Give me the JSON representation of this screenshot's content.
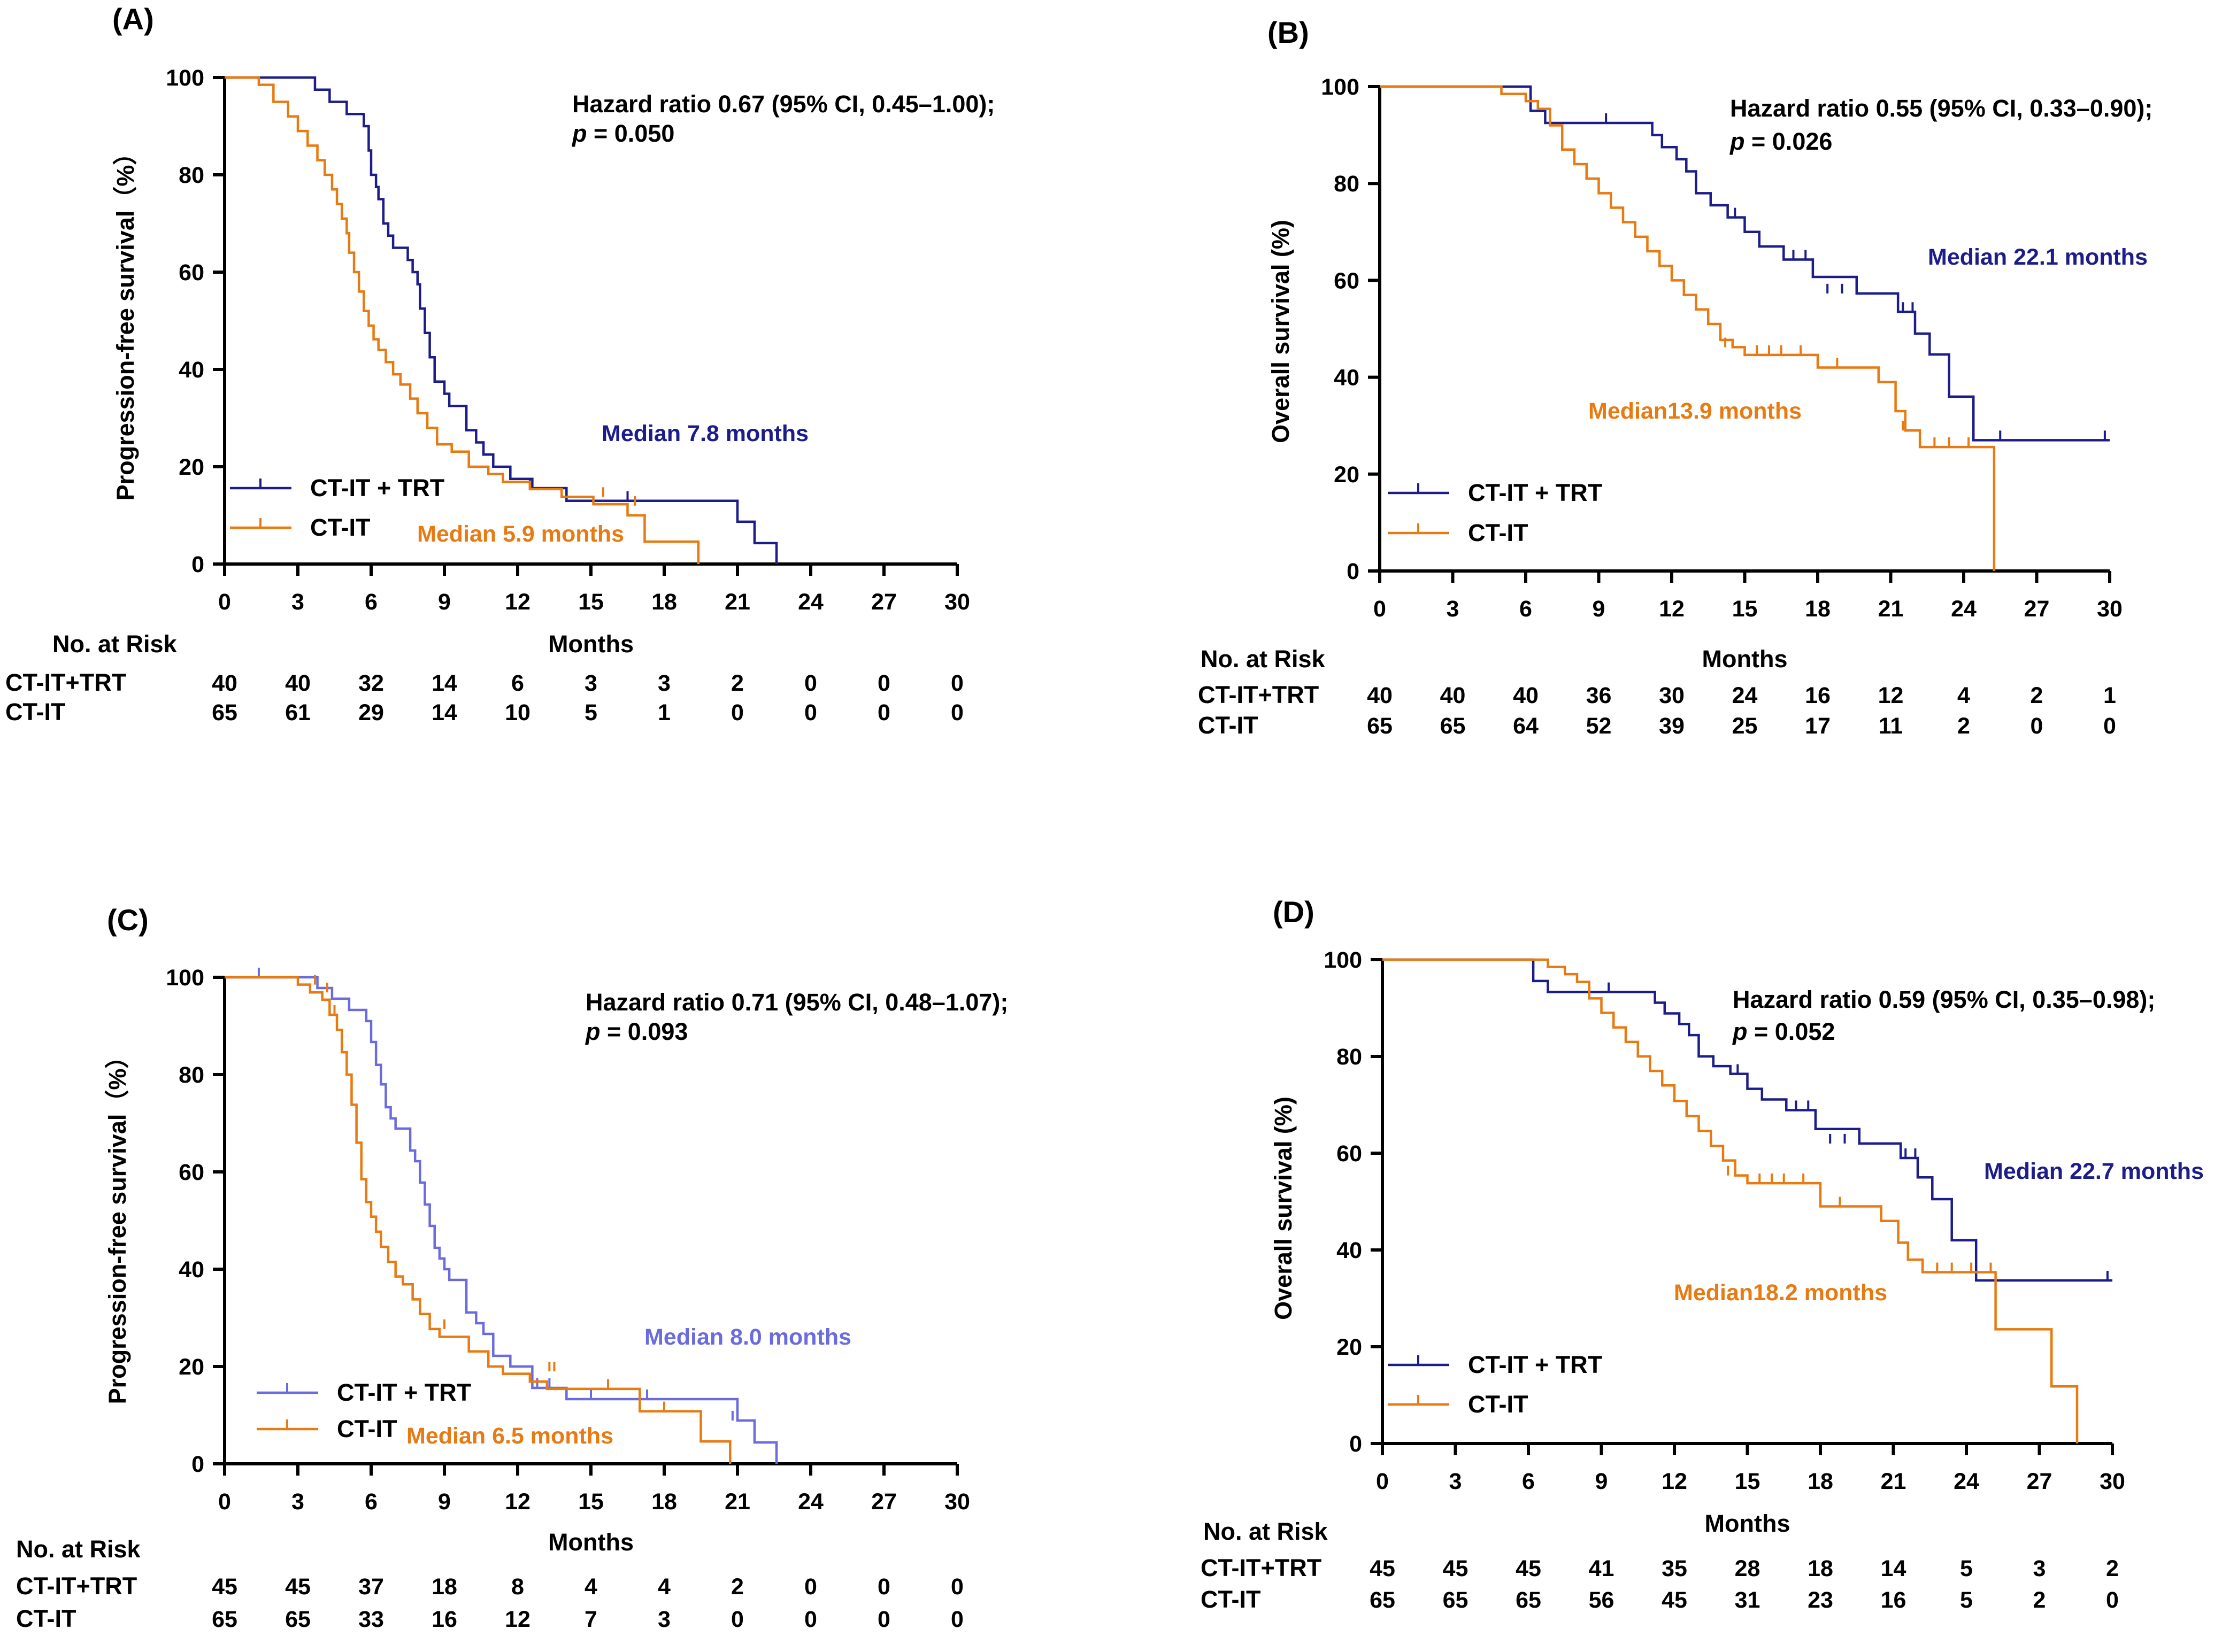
{
  "colors": {
    "blue_dark": "#1c1c8a",
    "blue_light": "#6b6be0",
    "orange": "#e87a12",
    "axis": "#000000"
  },
  "chart_data": [
    {
      "label": "(A)",
      "type": "line",
      "subtype": "kaplan-meier",
      "ylabel": "Progression-free survival（%）",
      "xlabel": "Months",
      "xlim": [
        0,
        30
      ],
      "ylim": [
        0,
        100
      ],
      "x_ticks": [
        "0",
        "3",
        "6",
        "9",
        "12",
        "15",
        "18",
        "21",
        "24",
        "27",
        "30"
      ],
      "y_ticks": [
        "0",
        "20",
        "40",
        "60",
        "80",
        "100"
      ],
      "annotation": {
        "line1": "Hazard ratio 0.67 (95% CI, 0.45–1.00);",
        "line2_p": "p",
        "line2_rest": " = 0.050"
      },
      "median_labels": [
        {
          "text": "Median 7.8 months",
          "series": 0
        },
        {
          "text": "Median 5.9 months",
          "series": 1
        }
      ],
      "series": [
        {
          "name": "CT-IT + TRT",
          "color": "#1c1c8a",
          "x": [
            0,
            3.7,
            4.3,
            5,
            5.7,
            5.9,
            6,
            6.2,
            6.3,
            6.5,
            6.7,
            6.9,
            7.5,
            7.7,
            7.9,
            8,
            8.2,
            8.4,
            8.6,
            9,
            9.2,
            9.9,
            10.3,
            10.6,
            11,
            11.7,
            12.6,
            14,
            16,
            21,
            21.7,
            22.6
          ],
          "y": [
            100,
            97.5,
            95,
            92.5,
            90,
            85,
            80,
            77.5,
            75,
            70,
            67.5,
            65,
            62.5,
            60,
            57.5,
            52.5,
            47.5,
            42.5,
            37.5,
            35,
            32.5,
            27.5,
            25,
            22.5,
            20,
            17.5,
            15.6,
            13,
            13,
            8.7,
            4.3,
            0
          ],
          "censor": [
            [
              12.5,
              15.6
            ],
            [
              16.5,
              13
            ]
          ]
        },
        {
          "name": "CT-IT",
          "color": "#e87a12",
          "x": [
            0,
            1.4,
            2,
            2.6,
            3,
            3.4,
            3.8,
            4.1,
            4.4,
            4.6,
            4.8,
            5,
            5.1,
            5.3,
            5.5,
            5.7,
            5.9,
            6.1,
            6.3,
            6.6,
            6.9,
            7.2,
            7.6,
            7.9,
            8.3,
            8.7,
            9.3,
            10,
            10.8,
            11.4,
            12.5,
            13.8,
            15.1,
            16.5,
            17.2,
            19.4
          ],
          "y": [
            100,
            98.5,
            95,
            92,
            89,
            86,
            83,
            80,
            77,
            74,
            71,
            68,
            64,
            60,
            56,
            52,
            49,
            46.2,
            44,
            41.5,
            39,
            36.9,
            34,
            31,
            28,
            24.6,
            23.1,
            20,
            18.5,
            16.9,
            15.4,
            13.8,
            12.3,
            10,
            4.6,
            0
          ],
          "censor": [
            [
              15.5,
              13.8
            ],
            [
              16.8,
              12
            ]
          ]
        }
      ],
      "at_risk": {
        "header": "No. at Risk",
        "rows": [
          {
            "label": "CT-IT+TRT",
            "values": [
              "40",
              "40",
              "32",
              "14",
              "6",
              "3",
              "3",
              "2",
              "0",
              "0",
              "0"
            ]
          },
          {
            "label": "CT-IT",
            "values": [
              "65",
              "61",
              "29",
              "14",
              "10",
              "5",
              "1",
              "0",
              "0",
              "0",
              "0"
            ]
          }
        ]
      }
    },
    {
      "label": "(B)",
      "type": "line",
      "subtype": "kaplan-meier",
      "ylabel": "Overall survival (%)",
      "xlabel": "Months",
      "xlim": [
        0,
        30
      ],
      "ylim": [
        0,
        100
      ],
      "x_ticks": [
        "0",
        "3",
        "6",
        "9",
        "12",
        "15",
        "18",
        "21",
        "24",
        "27",
        "30"
      ],
      "y_ticks": [
        "0",
        "20",
        "40",
        "60",
        "80",
        "100"
      ],
      "annotation": {
        "line1": "Hazard ratio 0.55 (95% CI, 0.33–0.90);",
        "line2_p": "p",
        "line2_rest": " = 0.026"
      },
      "median_labels": [
        {
          "text": "Median 22.1 months",
          "series": 0
        },
        {
          "text": "Median13.9 months",
          "series": 1
        }
      ],
      "series": [
        {
          "name": "CT-IT + TRT",
          "color": "#1c1c8a",
          "x": [
            0,
            6.2,
            6.8,
            7.5,
            11.2,
            11.6,
            12.2,
            12.6,
            13,
            13.6,
            14.3,
            15,
            15.6,
            16.6,
            17.8,
            19.6,
            21.3,
            22,
            22.6,
            23.4,
            24.4,
            30
          ],
          "y": [
            100,
            95,
            92.5,
            92.5,
            90,
            87.5,
            85,
            82.5,
            78,
            75.5,
            73,
            70,
            67,
            64.3,
            60.7,
            57.3,
            53.5,
            49,
            44.7,
            36,
            27,
            27
          ],
          "censor": [
            [
              9.3,
              92.5
            ],
            [
              14.6,
              73
            ],
            [
              17,
              64.3
            ],
            [
              17.5,
              64.3
            ],
            [
              18.4,
              57.3
            ],
            [
              19,
              57.3
            ],
            [
              21.5,
              53.5
            ],
            [
              21.9,
              53.5
            ],
            [
              25.5,
              27
            ],
            [
              29.8,
              27
            ]
          ]
        },
        {
          "name": "CT-IT",
          "color": "#e87a12",
          "x": [
            0,
            5,
            6,
            6.5,
            7,
            7.5,
            8,
            8.5,
            9,
            9.5,
            10,
            10.5,
            11,
            11.5,
            12,
            12.5,
            13,
            13.5,
            14,
            14.5,
            15,
            16,
            18,
            20.5,
            21.2,
            21.6,
            22.2,
            25.2,
            25.25
          ],
          "y": [
            100,
            98.5,
            97,
            95.4,
            92,
            87,
            84,
            81,
            78,
            75,
            72,
            69,
            66,
            63,
            60,
            57,
            54,
            51,
            47.7,
            46.2,
            44.6,
            44.6,
            42,
            39,
            33,
            29,
            25.6,
            25.6,
            0
          ],
          "censor": [
            [
              14.2,
              46.2
            ],
            [
              15.5,
              44.6
            ],
            [
              16,
              44.6
            ],
            [
              16.5,
              44.6
            ],
            [
              17.3,
              44.6
            ],
            [
              18.8,
              42
            ],
            [
              21.5,
              29
            ],
            [
              22.8,
              25.6
            ],
            [
              23.4,
              25.6
            ],
            [
              24.2,
              25.6
            ]
          ]
        }
      ],
      "at_risk": {
        "header": "No. at Risk",
        "rows": [
          {
            "label": "CT-IT+TRT",
            "values": [
              "40",
              "40",
              "40",
              "36",
              "30",
              "24",
              "16",
              "12",
              "4",
              "2",
              "1"
            ]
          },
          {
            "label": "CT-IT",
            "values": [
              "65",
              "65",
              "64",
              "52",
              "39",
              "25",
              "17",
              "11",
              "2",
              "0",
              "0"
            ]
          }
        ]
      }
    },
    {
      "label": "(C)",
      "type": "line",
      "subtype": "kaplan-meier",
      "ylabel": "Progression-free survival（%）",
      "xlabel": "Months",
      "xlim": [
        0,
        30
      ],
      "ylim": [
        0,
        100
      ],
      "x_ticks": [
        "0",
        "3",
        "6",
        "9",
        "12",
        "15",
        "18",
        "21",
        "24",
        "27",
        "30"
      ],
      "y_ticks": [
        "0",
        "20",
        "40",
        "60",
        "80",
        "100"
      ],
      "annotation": {
        "line1": "Hazard ratio 0.71 (95% CI, 0.48–1.07);",
        "line2_p": "p",
        "line2_rest": " = 0.093"
      },
      "median_labels": [
        {
          "text": "Median 8.0 months",
          "series": 0
        },
        {
          "text": "Median 6.5 months",
          "series": 1
        }
      ],
      "series": [
        {
          "name": "CT-IT + TRT",
          "color": "#6b6be0",
          "x": [
            0,
            3.8,
            4.4,
            5.1,
            5.8,
            6,
            6.2,
            6.4,
            6.6,
            6.8,
            7,
            7.6,
            7.8,
            8,
            8.2,
            8.4,
            8.6,
            8.8,
            9,
            9.2,
            9.9,
            10.3,
            10.6,
            11,
            11.7,
            12.6,
            14,
            16,
            21,
            21.7,
            22.6
          ],
          "y": [
            100,
            97.8,
            95.6,
            93.3,
            91,
            86.7,
            82,
            78,
            73.3,
            71,
            68.9,
            64.4,
            62.2,
            57.8,
            53.3,
            48.9,
            44.4,
            42.2,
            40,
            37.8,
            31.1,
            28.9,
            26.7,
            22.2,
            20,
            15.6,
            13.3,
            13.3,
            8.9,
            4.4,
            0
          ],
          "censor": [
            [
              1.4,
              100
            ],
            [
              12.8,
              15.6
            ],
            [
              13.3,
              15.6
            ],
            [
              15,
              13.3
            ],
            [
              17.3,
              13.3
            ],
            [
              20.8,
              8.9
            ]
          ]
        },
        {
          "name": "CT-IT",
          "color": "#e87a12",
          "x": [
            0,
            3,
            3.5,
            4,
            4.3,
            4.6,
            4.8,
            5,
            5.2,
            5.4,
            5.6,
            5.8,
            6,
            6.2,
            6.4,
            6.7,
            7,
            7.3,
            7.7,
            8,
            8.4,
            8.8,
            9.3,
            10,
            10.8,
            11.4,
            12.5,
            13.2,
            17,
            19.5,
            20.7
          ],
          "y": [
            100,
            98.5,
            96.9,
            95.4,
            92.3,
            89.2,
            84.6,
            80,
            73.8,
            66,
            58.5,
            53.8,
            50.8,
            47.7,
            44.6,
            41.5,
            38.5,
            36.9,
            33.8,
            30.8,
            27.7,
            26.1,
            26.1,
            23.1,
            20,
            18.5,
            16.9,
            15.4,
            10.8,
            4.6,
            0
          ],
          "censor": [
            [
              3.7,
              98.5
            ],
            [
              4.2,
              96.9
            ],
            [
              4.5,
              92.3
            ],
            [
              9,
              27.7
            ],
            [
              13.3,
              19
            ],
            [
              13.5,
              19
            ],
            [
              15.7,
              15.4
            ],
            [
              18,
              10.8
            ]
          ]
        }
      ],
      "at_risk": {
        "header": "No. at Risk",
        "rows": [
          {
            "label": "CT-IT+TRT",
            "values": [
              "45",
              "45",
              "37",
              "18",
              "8",
              "4",
              "4",
              "2",
              "0",
              "0",
              "0"
            ]
          },
          {
            "label": "CT-IT",
            "values": [
              "65",
              "65",
              "33",
              "16",
              "12",
              "7",
              "3",
              "0",
              "0",
              "0",
              "0"
            ]
          }
        ]
      }
    },
    {
      "label": "(D)",
      "type": "line",
      "subtype": "kaplan-meier",
      "ylabel": "Overall survival (%)",
      "xlabel": "Months",
      "xlim": [
        0,
        30
      ],
      "ylim": [
        0,
        100
      ],
      "x_ticks": [
        "0",
        "3",
        "6",
        "9",
        "12",
        "15",
        "18",
        "21",
        "24",
        "27",
        "30"
      ],
      "y_ticks": [
        "0",
        "20",
        "40",
        "60",
        "80",
        "100"
      ],
      "annotation": {
        "line1": "Hazard ratio 0.59 (95% CI, 0.35–0.98);",
        "line2_p": "p",
        "line2_rest": " = 0.052"
      },
      "median_labels": [
        {
          "text": "Median 22.7 months",
          "series": 0
        },
        {
          "text": "Median18.2 months",
          "series": 1
        }
      ],
      "series": [
        {
          "name": "CT-IT + TRT",
          "color": "#1c1c8a",
          "x": [
            0,
            6.2,
            6.8,
            7.5,
            11.2,
            11.6,
            12.2,
            12.6,
            13,
            13.6,
            14.3,
            15,
            15.6,
            16.6,
            17.8,
            19.6,
            21.3,
            22,
            22.6,
            23.4,
            24.4,
            30
          ],
          "y": [
            100,
            95.6,
            93.3,
            93.3,
            91.1,
            88.9,
            86.7,
            84.4,
            80,
            78,
            76.4,
            73.3,
            71.1,
            68.9,
            65,
            62,
            59,
            55,
            50.5,
            42,
            33.7,
            33.7
          ],
          "censor": [
            [
              9.3,
              93.3
            ],
            [
              14.6,
              76.4
            ],
            [
              17,
              68.9
            ],
            [
              17.5,
              68.9
            ],
            [
              18.4,
              62
            ],
            [
              19,
              62
            ],
            [
              21.5,
              59
            ],
            [
              21.9,
              59
            ],
            [
              29.8,
              33.7
            ]
          ]
        },
        {
          "name": "CT-IT",
          "color": "#e87a12",
          "x": [
            0,
            6.8,
            7.5,
            8,
            8.5,
            9,
            9.5,
            10,
            10.5,
            11,
            11.5,
            12,
            12.5,
            13,
            13.5,
            14,
            14.5,
            15,
            16,
            18,
            20.5,
            21.2,
            21.6,
            22.2,
            25.2,
            27.5,
            28.5,
            28.55
          ],
          "y": [
            100,
            98.5,
            97,
            95.4,
            92,
            89,
            86,
            83,
            80,
            77,
            74,
            70.8,
            67.7,
            64.6,
            61.5,
            58.5,
            55.4,
            53.8,
            53.8,
            49,
            46,
            41.5,
            38,
            35.4,
            23.6,
            11.8,
            11.8,
            0
          ],
          "censor": [
            [
              14.2,
              55.4
            ],
            [
              15.5,
              53.8
            ],
            [
              16,
              53.8
            ],
            [
              16.5,
              53.8
            ],
            [
              17.3,
              53.8
            ],
            [
              18.8,
              49
            ],
            [
              22.8,
              35.4
            ],
            [
              23.4,
              35.4
            ],
            [
              24.2,
              35.4
            ],
            [
              25,
              35.4
            ]
          ]
        }
      ],
      "at_risk": {
        "header": "No. at Risk",
        "rows": [
          {
            "label": "CT-IT+TRT",
            "values": [
              "45",
              "45",
              "45",
              "41",
              "35",
              "28",
              "18",
              "14",
              "5",
              "3",
              "2"
            ]
          },
          {
            "label": "CT-IT",
            "values": [
              "65",
              "65",
              "65",
              "56",
              "45",
              "31",
              "23",
              "16",
              "5",
              "2",
              "0"
            ]
          }
        ]
      }
    }
  ]
}
